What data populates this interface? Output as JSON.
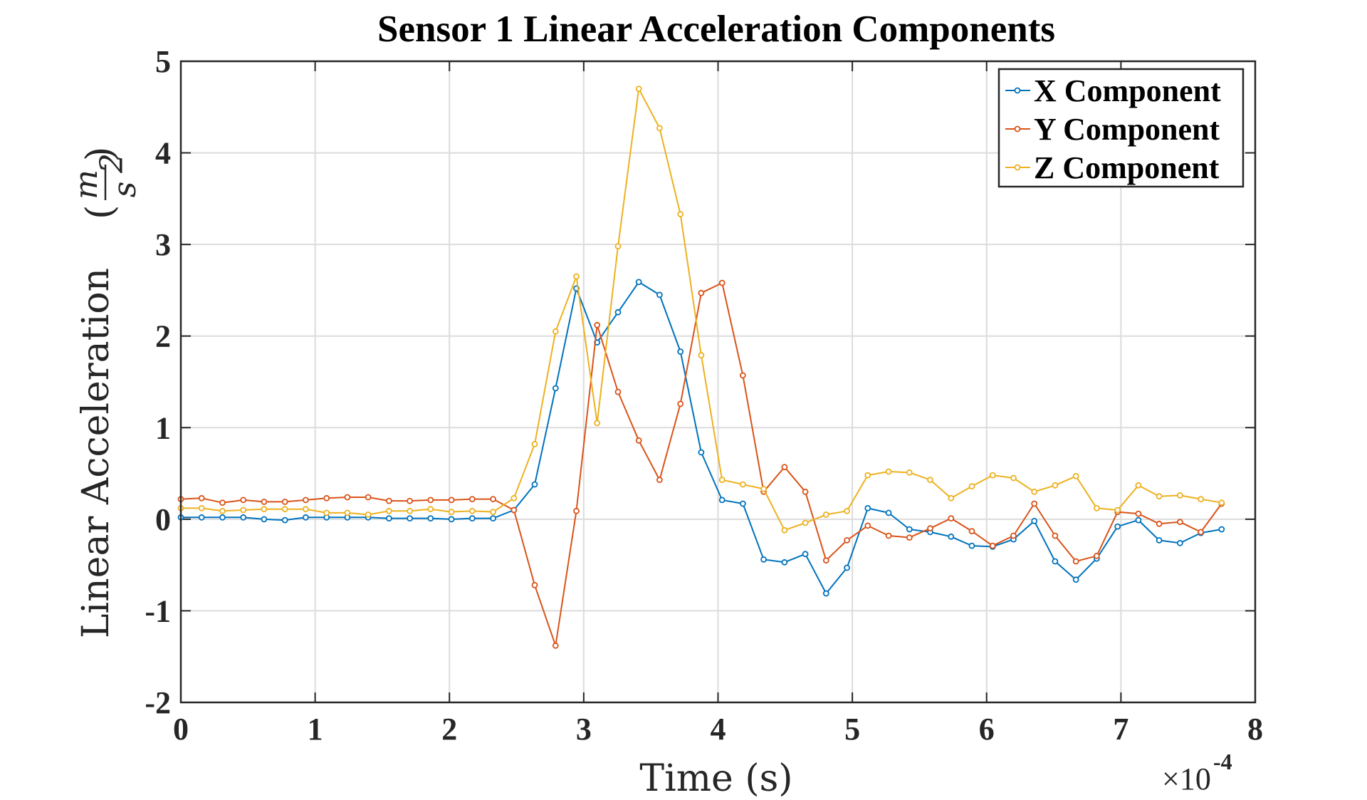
{
  "chart_data": {
    "type": "line",
    "title": "Sensor 1 Linear Acceleration Components",
    "xlabel": "Time (s)",
    "ylabel": "Linear Acceleration",
    "ylabel_unit": {
      "num": "m",
      "den": "s",
      "den_exp": "2"
    },
    "x_multiplier": {
      "prefix": "×10",
      "exponent": "-4"
    },
    "xlim": [
      0,
      8
    ],
    "ylim": [
      -2,
      5
    ],
    "xticks": [
      "0",
      "1",
      "2",
      "3",
      "4",
      "5",
      "6",
      "7",
      "8"
    ],
    "yticks": [
      "-2",
      "-1",
      "0",
      "1",
      "2",
      "3",
      "4",
      "5"
    ],
    "grid": true,
    "legend_position": "top-right",
    "x": [
      0,
      0.155,
      0.31,
      0.465,
      0.62,
      0.775,
      0.93,
      1.085,
      1.24,
      1.395,
      1.55,
      1.705,
      1.86,
      2.015,
      2.17,
      2.325,
      2.48,
      2.635,
      2.79,
      2.945,
      3.1,
      3.255,
      3.41,
      3.565,
      3.72,
      3.875,
      4.03,
      4.185,
      4.34,
      4.495,
      4.65,
      4.805,
      4.96,
      5.115,
      5.27,
      5.425,
      5.58,
      5.735,
      5.89,
      6.045,
      6.2,
      6.355,
      6.51,
      6.665,
      6.82,
      6.975,
      7.13,
      7.285,
      7.44,
      7.595,
      7.75
    ],
    "series": [
      {
        "name": "X Component",
        "color": "#0072BD",
        "values": [
          0.02,
          0.02,
          0.02,
          0.02,
          0.0,
          -0.01,
          0.02,
          0.02,
          0.02,
          0.02,
          0.01,
          0.01,
          0.01,
          0.0,
          0.01,
          0.01,
          0.1,
          0.38,
          1.43,
          2.52,
          1.93,
          2.26,
          2.59,
          2.45,
          1.83,
          0.73,
          0.21,
          0.17,
          -0.44,
          -0.47,
          -0.38,
          -0.81,
          -0.53,
          0.12,
          0.07,
          -0.11,
          -0.14,
          -0.19,
          -0.29,
          -0.3,
          -0.22,
          -0.02,
          -0.46,
          -0.66,
          -0.43,
          -0.08,
          -0.01,
          -0.23,
          -0.26,
          -0.15,
          -0.11
        ]
      },
      {
        "name": "Y Component",
        "color": "#D95319",
        "values": [
          0.22,
          0.23,
          0.18,
          0.21,
          0.19,
          0.19,
          0.21,
          0.23,
          0.24,
          0.24,
          0.2,
          0.2,
          0.21,
          0.21,
          0.22,
          0.22,
          0.1,
          -0.72,
          -1.38,
          0.09,
          2.12,
          1.39,
          0.86,
          0.43,
          1.26,
          2.47,
          2.58,
          1.57,
          0.3,
          0.57,
          0.3,
          -0.45,
          -0.23,
          -0.07,
          -0.18,
          -0.2,
          -0.1,
          0.01,
          -0.13,
          -0.29,
          -0.18,
          0.17,
          -0.18,
          -0.46,
          -0.4,
          0.08,
          0.06,
          -0.05,
          -0.03,
          -0.14,
          0.17
        ]
      },
      {
        "name": "Z Component",
        "color": "#EDB120",
        "values": [
          0.12,
          0.12,
          0.09,
          0.1,
          0.11,
          0.11,
          0.11,
          0.07,
          0.07,
          0.05,
          0.09,
          0.09,
          0.11,
          0.08,
          0.09,
          0.08,
          0.23,
          0.82,
          2.05,
          2.65,
          1.05,
          2.98,
          4.7,
          4.27,
          3.33,
          1.79,
          0.43,
          0.38,
          0.33,
          -0.12,
          -0.04,
          0.05,
          0.09,
          0.48,
          0.52,
          0.51,
          0.43,
          0.23,
          0.36,
          0.48,
          0.45,
          0.3,
          0.37,
          0.47,
          0.12,
          0.1,
          0.37,
          0.25,
          0.26,
          0.22,
          0.18
        ]
      }
    ]
  }
}
